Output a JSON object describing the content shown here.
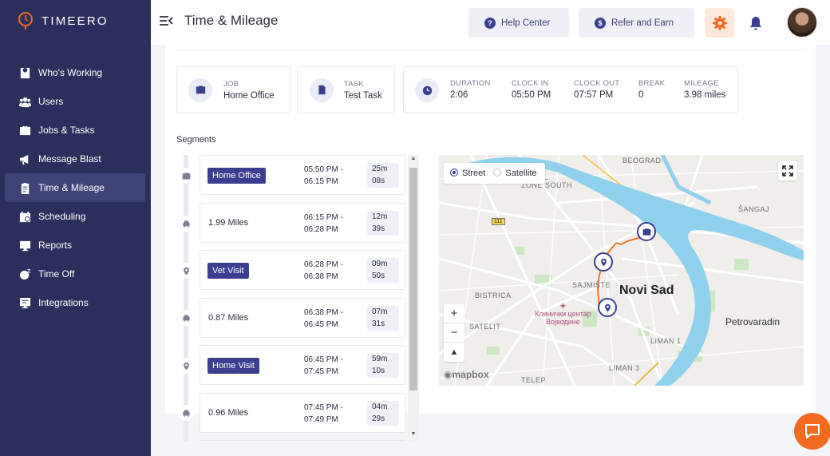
{
  "brand": {
    "name": "TIMEERO",
    "accent": "#f26b21",
    "sidebar_bg": "#2c2f5e"
  },
  "sidebar": {
    "items": [
      {
        "label": "Who's Working",
        "icon": "map-marker-icon"
      },
      {
        "label": "Users",
        "icon": "users-icon"
      },
      {
        "label": "Jobs & Tasks",
        "icon": "briefcase-icon"
      },
      {
        "label": "Message Blast",
        "icon": "megaphone-icon"
      },
      {
        "label": "Time & Mileage",
        "icon": "clipboard-icon",
        "active": true
      },
      {
        "label": "Scheduling",
        "icon": "calendar-icon"
      },
      {
        "label": "Reports",
        "icon": "reports-icon"
      },
      {
        "label": "Time Off",
        "icon": "time-off-icon"
      },
      {
        "label": "Integrations",
        "icon": "integrations-icon"
      }
    ]
  },
  "header": {
    "title": "Time & Mileage",
    "help_label": "Help Center",
    "refer_label": "Refer and Earn"
  },
  "summary": {
    "job": {
      "label": "JOB",
      "value": "Home Office"
    },
    "task": {
      "label": "TASK",
      "value": "Test Task"
    },
    "stats": [
      {
        "label": "DURATION",
        "value": "2:06"
      },
      {
        "label": "CLOCK IN",
        "value": "05:50 PM"
      },
      {
        "label": "CLOCK OUT",
        "value": "07:57 PM"
      },
      {
        "label": "BREAK",
        "value": "0"
      },
      {
        "label": "MILEAGE",
        "value": "3.98 miles"
      }
    ]
  },
  "segments_title": "Segments",
  "segments": [
    {
      "type": "job",
      "label": "Home Office",
      "start": "05:50 PM -",
      "end": "06:15 PM",
      "dur1": "25m",
      "dur2": "08s"
    },
    {
      "type": "drive",
      "label": "1.99 Miles",
      "start": "06:15 PM -",
      "end": "06:28 PM",
      "dur1": "12m",
      "dur2": "39s"
    },
    {
      "type": "stop",
      "label": "Vet Visit",
      "start": "06:28 PM -",
      "end": "06:38 PM",
      "dur1": "09m",
      "dur2": "50s"
    },
    {
      "type": "drive",
      "label": "0.87 Miles",
      "start": "06:38 PM -",
      "end": "06:45 PM",
      "dur1": "07m",
      "dur2": "31s"
    },
    {
      "type": "stop",
      "label": "Home Visit",
      "start": "06:45 PM -",
      "end": "07:45 PM",
      "dur1": "59m",
      "dur2": "10s"
    },
    {
      "type": "drive",
      "label": "0.96 Miles",
      "start": "07:45 PM -",
      "end": "07:49 PM",
      "dur1": "04m",
      "dur2": "29s"
    }
  ],
  "map": {
    "street_label": "Street",
    "satellite_label": "Satellite",
    "city": "Novi Sad",
    "town": "Petrovaradin",
    "labels": [
      "BEOGRAD",
      "RIAL",
      "ZONE SOUTH",
      "ŠANGAJ",
      "SAJMIŠTE",
      "BISTRICA",
      "SATELIT",
      "LIMAN 1",
      "LIMAN 3",
      "TELEP"
    ],
    "hospital": [
      "Клинички центар",
      "Војводине"
    ],
    "road": "111",
    "attribution": "mapbox",
    "zoom_in": "+",
    "zoom_out": "−"
  }
}
